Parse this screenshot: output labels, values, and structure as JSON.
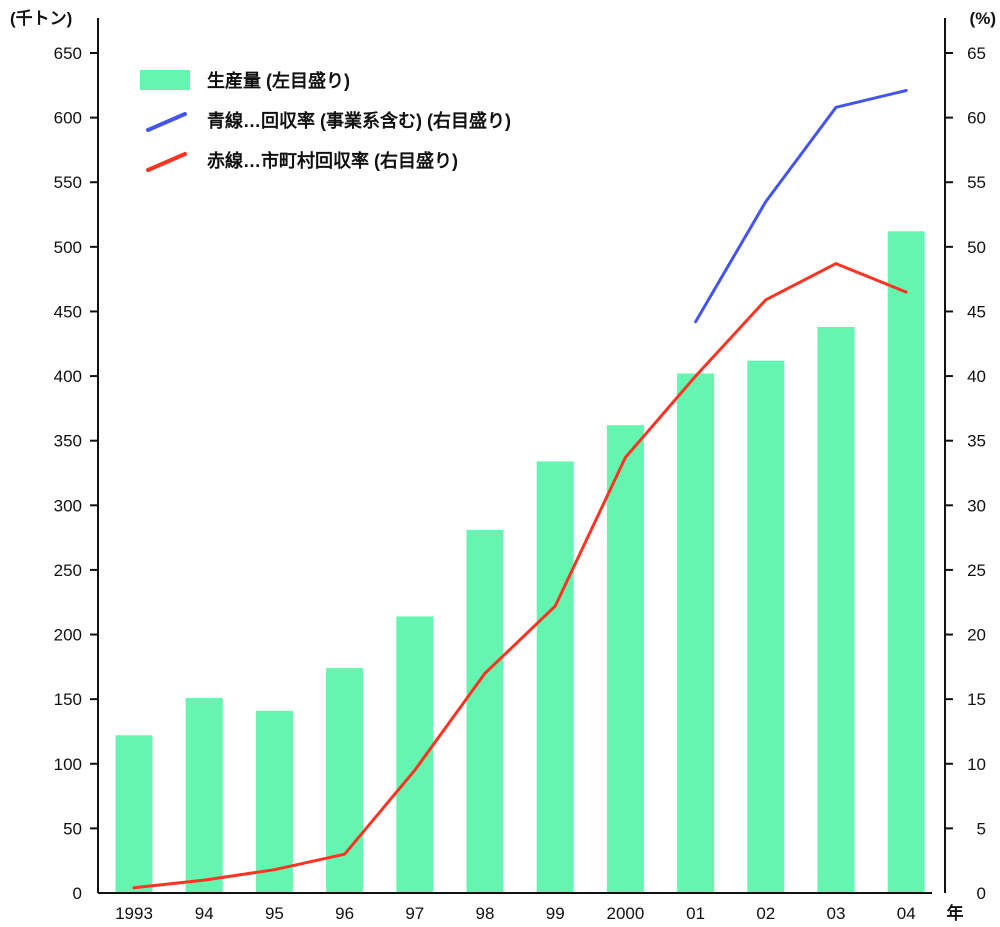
{
  "chart_data": {
    "type": "bar",
    "units": {
      "left": "(千トン)",
      "right": "(%)",
      "xsuffix": "年"
    },
    "categories": [
      "1993",
      "94",
      "95",
      "96",
      "97",
      "98",
      "99",
      "2000",
      "01",
      "02",
      "03",
      "04"
    ],
    "ylim_left": [
      0,
      650
    ],
    "ylim_right": [
      0,
      65
    ],
    "yticks_left": [
      0,
      50,
      100,
      150,
      200,
      250,
      300,
      350,
      400,
      450,
      500,
      550,
      600,
      650
    ],
    "yticks_right": [
      0,
      5,
      10,
      15,
      20,
      25,
      30,
      35,
      40,
      45,
      50,
      55,
      60,
      65
    ],
    "series": [
      {
        "name": "生産量 (左目盛り)",
        "type": "bar",
        "axis": "left",
        "color": "#66f5b0",
        "values": [
          122,
          151,
          141,
          174,
          214,
          281,
          334,
          362,
          402,
          412,
          438,
          512
        ]
      },
      {
        "name": "青線…回収率 (事業系含む) (右目盛り)",
        "type": "line",
        "axis": "right",
        "color": "#4455ee",
        "values": [
          null,
          null,
          null,
          null,
          null,
          null,
          null,
          null,
          44.2,
          53.5,
          60.8,
          62.1
        ]
      },
      {
        "name": "赤線…市町村回収率 (右目盛り)",
        "type": "line",
        "axis": "right",
        "color": "#ff3322",
        "values": [
          0.4,
          1.0,
          1.8,
          3.0,
          9.5,
          17.0,
          22.2,
          33.7,
          40.0,
          45.9,
          48.7,
          46.5
        ]
      }
    ],
    "grid": false,
    "legend_position": "top-left"
  }
}
